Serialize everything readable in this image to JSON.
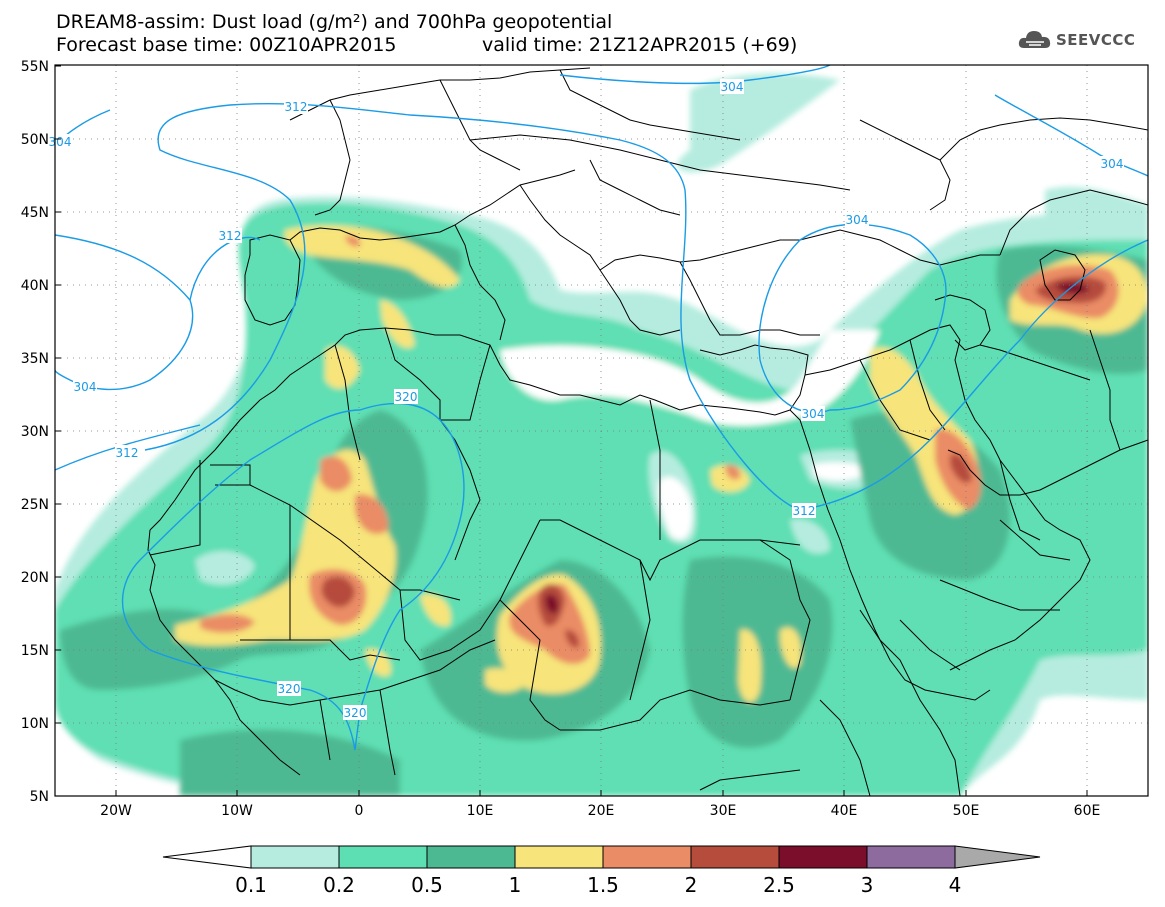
{
  "header": {
    "title_line1": "DREAM8-assim: Dust load (g/m²) and 700hPa geopotential",
    "forecast_base": "Forecast base time: 00Z10APR2015",
    "valid_time": "valid time: 21Z12APR2015 (+69)",
    "logo_text": "SEEVCCC"
  },
  "map": {
    "lon_range": [
      -25,
      65
    ],
    "lat_range": [
      5,
      55
    ],
    "grid": "dotted",
    "y_ticks": [
      "5N",
      "10N",
      "15N",
      "20N",
      "25N",
      "30N",
      "35N",
      "40N",
      "45N",
      "50N",
      "55N"
    ],
    "x_ticks": [
      "20W",
      "10W",
      "0",
      "10E",
      "20E",
      "30E",
      "40E",
      "50E",
      "60E"
    ],
    "contour_labels": [
      "304",
      "312",
      "304",
      "312",
      "304",
      "312",
      "320",
      "304",
      "304",
      "304",
      "312",
      "320",
      "320"
    ]
  },
  "colorbar": {
    "tick_labels": [
      "0.1",
      "0.2",
      "0.5",
      "1",
      "1.5",
      "2",
      "2.5",
      "3",
      "4"
    ],
    "colors": [
      "#ffffff",
      "#b5ecdf",
      "#5edfb3",
      "#4db993",
      "#f7e47a",
      "#ea8c65",
      "#b64c3c",
      "#7b0e2a",
      "#8d6b9e",
      "#a9a9a9"
    ]
  },
  "colors": {
    "contour": "#1a9be6",
    "coast": "#000000",
    "level1": "#b5ecdf",
    "level2": "#5edfb3",
    "level3": "#4db993",
    "level4": "#f7e47a",
    "level5": "#ea8c65",
    "level6": "#b64c3c",
    "level7": "#7b0e2a"
  }
}
